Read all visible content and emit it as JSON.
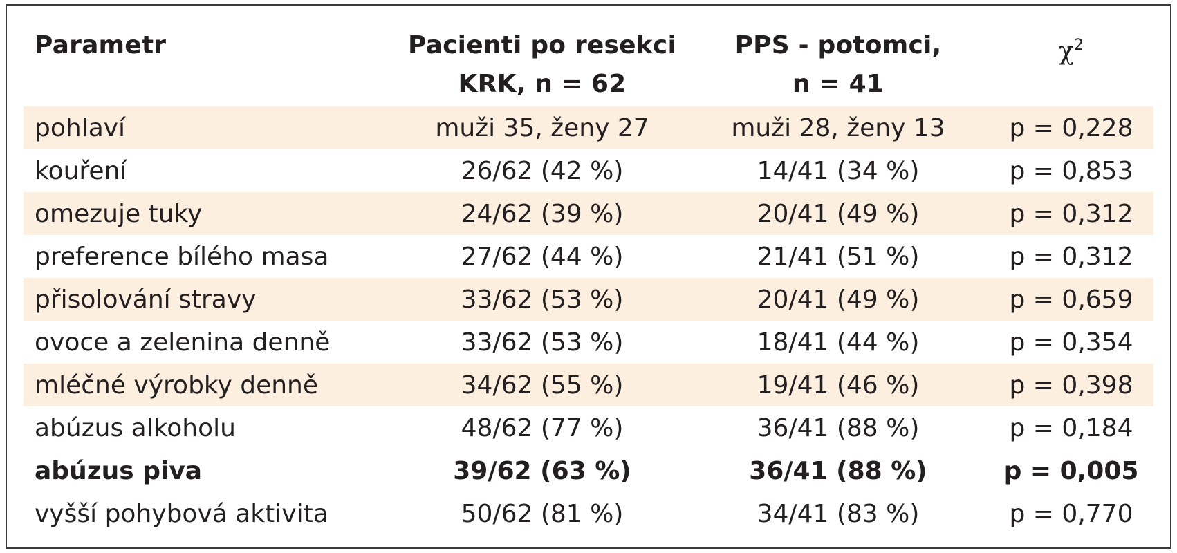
{
  "table": {
    "headers": {
      "parameter": "Parametr",
      "group_a_line1": "Pacienti po resekci",
      "group_a_line2": "KRK, n = 62",
      "group_b_line1": "PPS - potomci,",
      "group_b_line2": "n = 41",
      "chi_symbol": "χ",
      "chi_exponent": "2"
    },
    "rows": [
      {
        "parameter": "pohlaví",
        "group_a": "muži 35, ženy 27",
        "group_b": "muži 28, ženy 13",
        "p": "p = 0,228"
      },
      {
        "parameter": "kouření",
        "group_a": "26/62 (42 %)",
        "group_b": "14/41 (34 %)",
        "p": "p = 0,853"
      },
      {
        "parameter": "omezuje tuky",
        "group_a": "24/62 (39 %)",
        "group_b": "20/41 (49 %)",
        "p": "p = 0,312"
      },
      {
        "parameter": "preference bílého masa",
        "group_a": "27/62 (44 %)",
        "group_b": "21/41 (51 %)",
        "p": "p = 0,312"
      },
      {
        "parameter": "přisolování stravy",
        "group_a": "33/62 (53 %)",
        "group_b": "20/41 (49 %)",
        "p": "p = 0,659"
      },
      {
        "parameter": "ovoce a zelenina denně",
        "group_a": "33/62 (53 %)",
        "group_b": "18/41 (44 %)",
        "p": "p = 0,354"
      },
      {
        "parameter": "mléčné výrobky denně",
        "group_a": "34/62 (55 %)",
        "group_b": "19/41 (46 %)",
        "p": "p = 0,398"
      },
      {
        "parameter": "abúzus alkoholu",
        "group_a": "48/62 (77 %)",
        "group_b": "36/41 (88 %)",
        "p": "p = 0,184"
      },
      {
        "parameter": "abúzus piva",
        "group_a": "39/62 (63 %)",
        "group_b": "36/41 (88 %)",
        "p": "p = 0,005"
      },
      {
        "parameter": "vyšší pohybová aktivita",
        "group_a": "50/62 (81 %)",
        "group_b": "34/41 (83 %)",
        "p": "p = 0,770"
      }
    ]
  },
  "colors": {
    "shaded_row": "#fcefe0",
    "text": "#231f20",
    "border": "#3a3a3a"
  }
}
